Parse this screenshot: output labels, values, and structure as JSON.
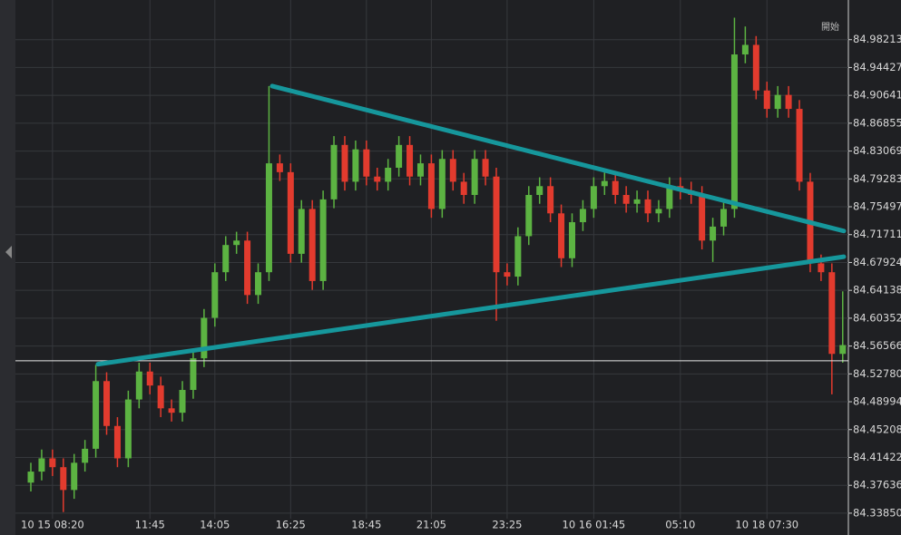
{
  "chart_data": {
    "type": "candlestick",
    "corner_label": "開始",
    "categories": [
      null,
      null,
      "10 15 08:20",
      null,
      null,
      null,
      null,
      null,
      null,
      null,
      null,
      "11:45",
      null,
      null,
      null,
      null,
      null,
      "14:05",
      null,
      null,
      null,
      null,
      null,
      null,
      "16:25",
      null,
      null,
      null,
      null,
      null,
      null,
      "18:45",
      null,
      null,
      null,
      null,
      null,
      "21:05",
      null,
      null,
      null,
      null,
      null,
      null,
      "23:25",
      null,
      null,
      null,
      null,
      null,
      null,
      null,
      "10 16 01:45",
      null,
      null,
      null,
      null,
      null,
      null,
      null,
      "05:10",
      null,
      null,
      null,
      null,
      null,
      null,
      null,
      "10 18 07:30",
      null,
      null,
      null,
      null,
      null,
      null,
      null
    ],
    "open": [
      84.38,
      84.395,
      84.413,
      84.401,
      84.37,
      84.407,
      84.426,
      84.518,
      84.457,
      84.413,
      84.493,
      84.531,
      84.512,
      84.481,
      84.475,
      84.506,
      84.549,
      84.604,
      84.666,
      84.703,
      84.709,
      84.635,
      84.666,
      84.814,
      84.802,
      84.691,
      84.752,
      84.654,
      84.765,
      84.839,
      84.789,
      84.833,
      84.796,
      84.789,
      84.808,
      84.839,
      84.796,
      84.814,
      84.752,
      84.82,
      84.789,
      84.771,
      84.82,
      84.796,
      84.666,
      84.66,
      84.715,
      84.771,
      84.783,
      84.746,
      84.685,
      84.734,
      84.752,
      84.783,
      84.79,
      84.771,
      84.759,
      84.765,
      84.746,
      84.752,
      84.783,
      84.777,
      84.771,
      84.709,
      84.728,
      84.752,
      84.962,
      84.975,
      84.913,
      84.888,
      84.907,
      84.888,
      84.789,
      84.678,
      84.666,
      84.555
    ],
    "high": [
      84.407,
      84.425,
      84.425,
      84.413,
      84.419,
      84.438,
      84.54,
      84.53,
      84.469,
      84.505,
      84.543,
      84.543,
      84.524,
      84.493,
      84.518,
      84.561,
      84.616,
      84.678,
      84.715,
      84.721,
      84.721,
      84.678,
      84.919,
      84.826,
      84.814,
      84.764,
      84.764,
      84.777,
      84.851,
      84.851,
      84.845,
      84.845,
      84.808,
      84.82,
      84.851,
      84.851,
      84.826,
      84.826,
      84.832,
      84.832,
      84.801,
      84.832,
      84.832,
      84.808,
      84.678,
      84.727,
      84.783,
      84.795,
      84.795,
      84.758,
      84.746,
      84.764,
      84.795,
      84.802,
      84.802,
      84.783,
      84.777,
      84.777,
      84.764,
      84.795,
      84.795,
      84.789,
      84.783,
      84.74,
      84.764,
      85.012,
      85.0,
      84.987,
      84.925,
      84.919,
      84.919,
      84.9,
      84.801,
      84.69,
      84.678,
      84.64
    ],
    "low": [
      84.368,
      84.383,
      84.389,
      84.34,
      84.358,
      84.395,
      84.414,
      84.445,
      84.401,
      84.401,
      84.481,
      84.5,
      84.469,
      84.463,
      84.463,
      84.494,
      84.537,
      84.592,
      84.654,
      84.691,
      84.623,
      84.623,
      84.654,
      84.79,
      84.679,
      84.679,
      84.642,
      84.642,
      84.753,
      84.777,
      84.777,
      84.784,
      84.777,
      84.777,
      84.796,
      84.784,
      84.784,
      84.74,
      84.74,
      84.777,
      84.759,
      84.759,
      84.784,
      84.6,
      84.648,
      84.648,
      84.703,
      84.759,
      84.734,
      84.673,
      84.673,
      84.722,
      84.74,
      84.771,
      84.759,
      84.747,
      84.747,
      84.734,
      84.734,
      84.74,
      84.765,
      84.759,
      84.697,
      84.68,
      84.716,
      84.74,
      84.95,
      84.901,
      84.876,
      84.876,
      84.876,
      84.777,
      84.666,
      84.654,
      84.5,
      84.543
    ],
    "close": [
      84.395,
      84.413,
      84.401,
      84.37,
      84.407,
      84.426,
      84.518,
      84.457,
      84.413,
      84.493,
      84.531,
      84.512,
      84.481,
      84.475,
      84.506,
      84.549,
      84.604,
      84.666,
      84.703,
      84.709,
      84.635,
      84.666,
      84.814,
      84.802,
      84.691,
      84.752,
      84.654,
      84.765,
      84.839,
      84.789,
      84.833,
      84.796,
      84.789,
      84.808,
      84.839,
      84.796,
      84.814,
      84.752,
      84.82,
      84.789,
      84.771,
      84.82,
      84.796,
      84.666,
      84.66,
      84.715,
      84.771,
      84.783,
      84.746,
      84.685,
      84.734,
      84.752,
      84.783,
      84.79,
      84.771,
      84.759,
      84.765,
      84.746,
      84.752,
      84.783,
      84.777,
      84.771,
      84.709,
      84.728,
      84.752,
      84.962,
      84.975,
      84.913,
      84.888,
      84.907,
      84.888,
      84.789,
      84.678,
      84.666,
      84.555,
      84.567
    ],
    "up_color": "#5cb342",
    "down_color": "#e23b2e",
    "trendlines": [
      {
        "x": [
          22.3,
          75.1
        ],
        "y": [
          84.919,
          84.722
        ]
      },
      {
        "x": [
          6.2,
          75.1
        ],
        "y": [
          84.541,
          84.687
        ]
      }
    ],
    "trendline_color": "#16979c",
    "price_line": 84.5456,
    "ylim": [
      84.331,
      85.036
    ],
    "yticks": [
      {
        "value": 84.3385,
        "label": "84.33850"
      },
      84.37636,
      84.41422,
      84.45208,
      84.48994,
      {
        "value": 84.5278,
        "label": "84.52780"
      },
      84.56566,
      84.60352,
      84.64138,
      84.67924,
      84.71711,
      84.75497,
      84.79283,
      84.83069,
      84.86855,
      84.90641,
      84.94427,
      84.98213
    ],
    "grid": true
  }
}
